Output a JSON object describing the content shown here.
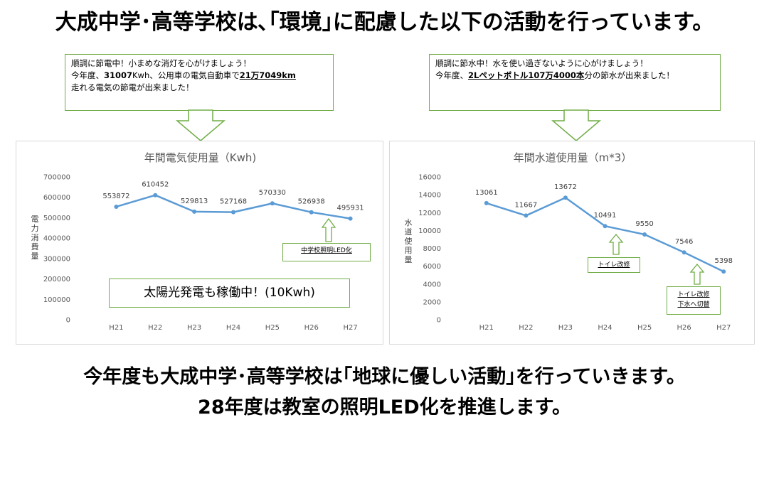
{
  "headline": "大成中学･高等学校は､｢環境｣に配慮した以下の活動を行っています。",
  "left_note": {
    "line1": "順調に節電中！小まめな消灯を心がけましょう！",
    "line2_a": "今年度、",
    "line2_b": "31007",
    "line2_c": "Kwh、公用車の電気自動車で",
    "line2_d": "21万7049km",
    "line3": "走れる電気の節電が出来ました！"
  },
  "right_note": {
    "line1": "順調に節水中！水を使い過ぎないように心がけましょう！",
    "line2_a": "今年度、",
    "line2_b": "2Lペットボトル107万4000本",
    "line2_c": "分の節水が出来ました！"
  },
  "electric_callouts": {
    "led": "中学校照明LED化",
    "solar": "太陽光発電も稼働中！(10Kwh)"
  },
  "water_callouts": {
    "toilet": "トイレ改修",
    "toilet_sewer_1": "トイレ改修",
    "toilet_sewer_2": "下水へ切替"
  },
  "chart_data": [
    {
      "type": "line",
      "title": "年間電気使用量（Kwh)",
      "ylabel": "電力消費量",
      "xlabel": "",
      "categories": [
        "H21",
        "H22",
        "H23",
        "H24",
        "H25",
        "H26",
        "H27"
      ],
      "values": [
        553872,
        610452,
        529813,
        527168,
        570330,
        526938,
        495931
      ],
      "ylim": [
        0,
        700000
      ],
      "yticks": [
        "0",
        "100000",
        "200000",
        "300000",
        "400000",
        "500000",
        "600000",
        "700000"
      ],
      "grid": false,
      "color": "#5b9bd5"
    },
    {
      "type": "line",
      "title": "年間水道使用量（m*3）",
      "ylabel": "水道使用量",
      "xlabel": "",
      "categories": [
        "H21",
        "H22",
        "H23",
        "H24",
        "H25",
        "H26",
        "H27"
      ],
      "values": [
        13061,
        11667,
        13672,
        10491,
        9550,
        7546,
        5398
      ],
      "ylim": [
        0,
        16000
      ],
      "yticks": [
        "0",
        "2000",
        "4000",
        "6000",
        "8000",
        "10000",
        "12000",
        "14000",
        "16000"
      ],
      "grid": false,
      "color": "#5b9bd5"
    }
  ],
  "bottom_line1": "今年度も大成中学･高等学校は｢地球に優しい活動｣を行っていきます。",
  "bottom_line2": "28年度は教室の照明LED化を推進します。",
  "colors": {
    "accent_green": "#70ad47",
    "series_blue": "#5b9bd5"
  }
}
